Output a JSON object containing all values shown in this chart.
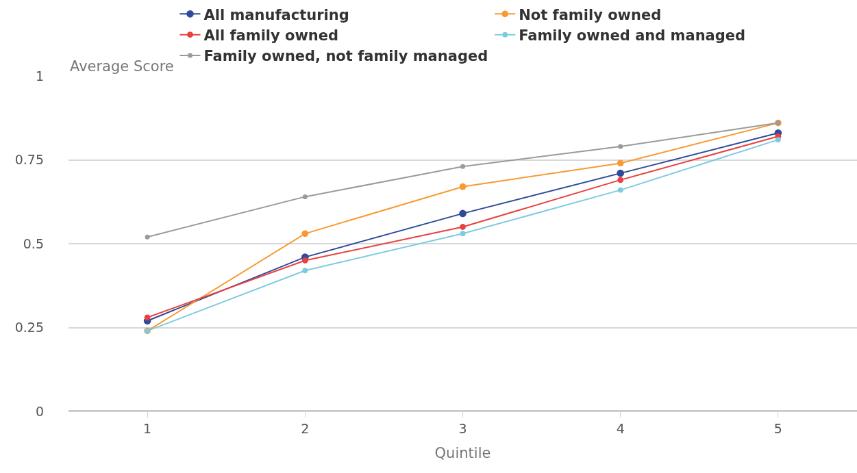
{
  "chart_data": {
    "type": "line",
    "xlabel": "Quintile",
    "ylabel": "Average Score",
    "x": [
      1,
      2,
      3,
      4,
      5
    ],
    "xlim": [
      0.5,
      5.5
    ],
    "xticks": [
      1,
      2,
      3,
      4,
      5
    ],
    "ylim": [
      0,
      1
    ],
    "yticks": [
      0,
      0.25,
      0.5,
      0.75,
      1
    ],
    "series": [
      {
        "name": "All manufacturing",
        "color": "#2e4a9a",
        "values": [
          0.27,
          0.46,
          0.59,
          0.71,
          0.83
        ]
      },
      {
        "name": "Not family owned",
        "color": "#f79a33",
        "values": [
          0.24,
          0.53,
          0.67,
          0.74,
          0.86
        ]
      },
      {
        "name": "All family owned",
        "color": "#e8413f",
        "values": [
          0.28,
          0.45,
          0.55,
          0.69,
          0.82
        ]
      },
      {
        "name": "Family owned and managed",
        "color": "#7ecbe0",
        "values": [
          0.24,
          0.42,
          0.53,
          0.66,
          0.81
        ]
      },
      {
        "name": "Family owned, not family managed",
        "color": "#9a9a9a",
        "values": [
          0.52,
          0.64,
          0.73,
          0.79,
          0.86
        ]
      }
    ],
    "grid": "y",
    "legend": "top",
    "marker": "circle",
    "line_style": "solid"
  }
}
